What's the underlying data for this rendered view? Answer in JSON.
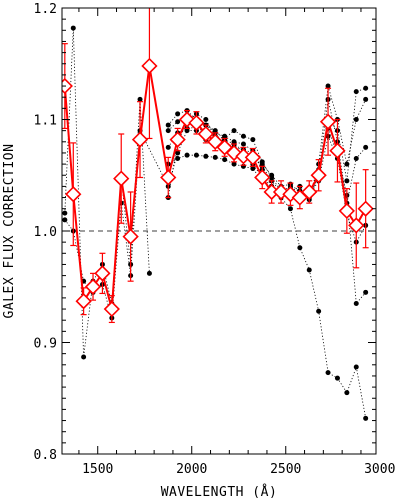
{
  "chart_data": {
    "type": "scatter",
    "xlabel": "WAVELENGTH (Å)",
    "ylabel": "GALEX FLUX CORRECTION",
    "xlim": [
      1310,
      2980
    ],
    "ylim": [
      0.8,
      1.2
    ],
    "x_ticks": [
      1500,
      2000,
      2500,
      3000
    ],
    "x_tick_labels": [
      "1500",
      "2000",
      "2500",
      "3000"
    ],
    "y_ticks": [
      0.8,
      0.9,
      1.0,
      1.1,
      1.2
    ],
    "y_tick_labels": [
      "0.8",
      "0.9",
      "1.0",
      "1.1",
      "1.2"
    ],
    "reference_line": 1.0,
    "colors": {
      "mean": "#ff0000",
      "individual": "#000000",
      "reference": "#000000"
    },
    "series": [
      {
        "style": "red diamonds with error bars, solid line",
        "x": [
          1325,
          1370,
          1425,
          1475,
          1525,
          1575,
          1625,
          1675,
          1725,
          1775,
          1875,
          1925,
          1975,
          2025,
          2075,
          2125,
          2175,
          2225,
          2275,
          2325,
          2375,
          2425,
          2475,
          2525,
          2575,
          2625,
          2675,
          2725,
          2775,
          2825,
          2875,
          2925
        ],
        "y": [
          1.13,
          1.033,
          0.937,
          0.95,
          0.962,
          0.93,
          1.047,
          0.995,
          1.082,
          1.148,
          1.048,
          1.082,
          1.1,
          1.097,
          1.087,
          1.08,
          1.075,
          1.07,
          1.067,
          1.066,
          1.048,
          1.035,
          1.035,
          1.033,
          1.03,
          1.035,
          1.05,
          1.098,
          1.072,
          1.018,
          1.005,
          1.02
        ],
        "yerr": [
          0.038,
          0.046,
          0.012,
          0.012,
          0.018,
          0.012,
          0.04,
          0.04,
          0.034,
          0.065,
          0.018,
          0.01,
          0.008,
          0.01,
          0.008,
          0.008,
          0.008,
          0.008,
          0.008,
          0.008,
          0.01,
          0.01,
          0.01,
          0.01,
          0.01,
          0.01,
          0.014,
          0.03,
          0.028,
          0.02,
          0.038,
          0.035
        ]
      },
      {
        "style": "black dots, dotted line",
        "x": [
          1325,
          1370,
          1425,
          1475,
          1525,
          1575,
          1625,
          1675,
          1725,
          1775
        ],
        "y": [
          1.016,
          1.182,
          0.887,
          0.955,
          0.97,
          0.935,
          1.048,
          0.97,
          1.118,
          0.962
        ]
      },
      {
        "style": "black dots, dotted line",
        "x": [
          1325,
          1370,
          1425,
          1475,
          1525,
          1575,
          1625,
          1675,
          1725,
          1875,
          1925,
          1975,
          2025,
          2075,
          2125,
          2175,
          2225,
          2275,
          2325,
          2375,
          2425,
          2475,
          2525,
          2575,
          2625,
          2675,
          2725,
          2775,
          2825,
          2875,
          2925
        ],
        "y": [
          1.01,
          1.0,
          0.955,
          0.945,
          0.952,
          0.922,
          1.025,
          0.96,
          1.09,
          1.04,
          1.07,
          1.09,
          1.09,
          1.082,
          1.078,
          1.072,
          1.07,
          1.067,
          1.06,
          1.048,
          1.04,
          1.032,
          1.035,
          1.04,
          1.032,
          1.045,
          1.085,
          1.065,
          1.015,
          0.99,
          1.005
        ]
      },
      {
        "style": "black dots, dotted line",
        "x": [
          1875,
          1925,
          1975,
          2025,
          2075,
          2125,
          2175,
          2225,
          2275,
          2325,
          2375,
          2425,
          2475,
          2525,
          2575,
          2625,
          2675,
          2725,
          2775,
          2825,
          2875,
          2925
        ],
        "y": [
          1.03,
          1.08,
          1.097,
          1.105,
          1.1,
          1.085,
          1.08,
          1.075,
          1.073,
          1.07,
          1.055,
          1.04,
          1.035,
          1.04,
          1.03,
          1.03,
          1.05,
          1.1,
          1.09,
          1.045,
          1.125,
          1.128
        ]
      },
      {
        "style": "black dots, dotted line",
        "x": [
          1875,
          1925,
          1975,
          2025,
          2075,
          2125,
          2175,
          2225,
          2275,
          2325,
          2375,
          2425,
          2475,
          2525,
          2575,
          2625,
          2675,
          2725,
          2775,
          2825,
          2875,
          2925
        ],
        "y": [
          1.095,
          1.105,
          1.108,
          1.1,
          1.095,
          1.088,
          1.085,
          1.08,
          1.078,
          1.072,
          1.06,
          1.05,
          1.04,
          1.042,
          1.035,
          1.03,
          1.06,
          1.13,
          1.1,
          1.06,
          1.1,
          1.118
        ]
      },
      {
        "style": "black dots, dotted line",
        "x": [
          1875,
          1925,
          1975,
          2025,
          2075,
          2125,
          2175,
          2225,
          2275,
          2325,
          2375,
          2425,
          2475,
          2525,
          2575,
          2625,
          2675,
          2725,
          2775,
          2825,
          2875,
          2925
        ],
        "y": [
          1.075,
          1.088,
          1.092,
          1.093,
          1.088,
          1.085,
          1.083,
          1.09,
          1.085,
          1.082,
          1.062,
          1.048,
          1.036,
          1.038,
          1.036,
          1.032,
          1.055,
          1.092,
          1.068,
          1.032,
          0.935,
          0.945
        ]
      },
      {
        "style": "black dots, dotted line",
        "x": [
          1875,
          1925,
          1975,
          2025,
          2075,
          2125,
          2175,
          2225,
          2275,
          2325,
          2375,
          2425,
          2475,
          2525,
          2575,
          2625,
          2675,
          2725,
          2775,
          2825,
          2875,
          2925
        ],
        "y": [
          1.06,
          1.065,
          1.068,
          1.068,
          1.067,
          1.066,
          1.064,
          1.06,
          1.058,
          1.056,
          1.045,
          1.038,
          1.03,
          1.02,
          0.985,
          0.965,
          0.928,
          0.873,
          0.868,
          0.855,
          0.878,
          0.832
        ]
      },
      {
        "style": "black dots, dotted line",
        "x": [
          1875,
          1925,
          1975,
          2025,
          2075,
          2125,
          2175,
          2225,
          2275,
          2325,
          2375,
          2425,
          2475,
          2525,
          2575,
          2625,
          2675,
          2725,
          2775,
          2825,
          2875,
          2925
        ],
        "y": [
          1.09,
          1.098,
          1.102,
          1.1,
          1.095,
          1.09,
          1.082,
          1.078,
          1.072,
          1.068,
          1.058,
          1.045,
          1.035,
          1.038,
          1.032,
          1.028,
          1.052,
          1.118,
          1.08,
          1.025,
          1.065,
          1.075
        ]
      }
    ]
  }
}
